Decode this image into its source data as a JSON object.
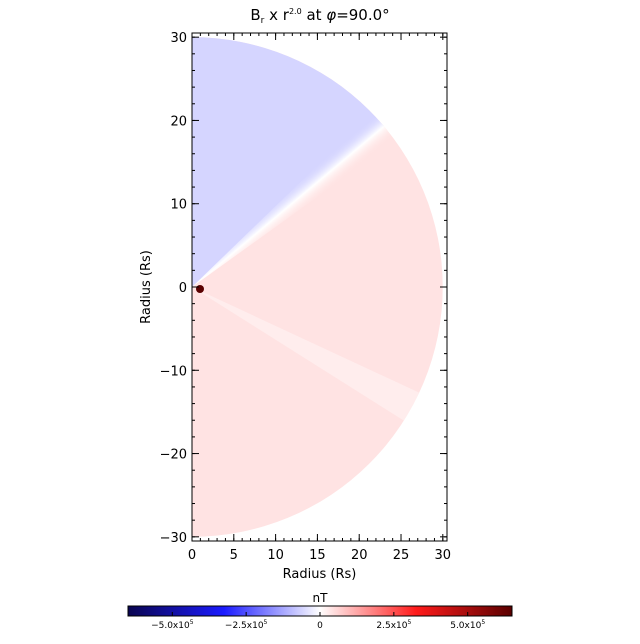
{
  "chart_data": {
    "type": "heatmap",
    "title_prefix": "B",
    "title_sub": "r",
    "title_mid": " x r",
    "title_sup": "2.0",
    "title_suffix": " at ",
    "title_phi": "φ",
    "title_angle": "=90.0°",
    "xlabel": "Radius (Rs)",
    "ylabel": "Radius (Rs)",
    "xlim": [
      0,
      30.5
    ],
    "ylim": [
      -30.5,
      30.5
    ],
    "x_ticks": [
      "0",
      "5",
      "10",
      "15",
      "20",
      "25",
      "30"
    ],
    "y_ticks": [
      "30",
      "20",
      "10",
      "0",
      "−10",
      "−20",
      "−30"
    ],
    "x_tick_values": [
      0,
      5,
      10,
      15,
      20,
      25,
      30
    ],
    "y_tick_values": [
      30,
      20,
      10,
      0,
      -10,
      -20,
      -30
    ],
    "domain_radius": 30,
    "polarity_boundary_angle_deg": 40,
    "negative_region_value": -60000,
    "positive_region_value": 40000,
    "colorbar": {
      "label": "nT",
      "min": -650000,
      "max": 650000,
      "ticks": [
        {
          "value": -500000,
          "mant": "−5.0x10",
          "exp": "5"
        },
        {
          "value": -250000,
          "mant": "−2.5x10",
          "exp": "5"
        },
        {
          "value": 0,
          "mant": "0",
          "exp": ""
        },
        {
          "value": 250000,
          "mant": "2.5x10",
          "exp": "5"
        },
        {
          "value": 500000,
          "mant": "5.0x10",
          "exp": "5"
        }
      ],
      "colormap": [
        "#0a0550",
        "#1b1bff",
        "#ffffff",
        "#ff1b1b",
        "#5a0000"
      ]
    }
  }
}
